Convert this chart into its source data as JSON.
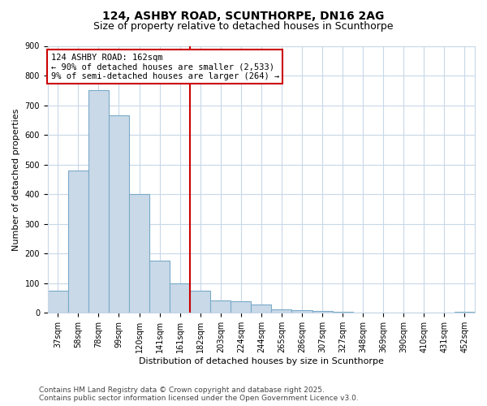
{
  "title1": "124, ASHBY ROAD, SCUNTHORPE, DN16 2AG",
  "title2": "Size of property relative to detached houses in Scunthorpe",
  "xlabel": "Distribution of detached houses by size in Scunthorpe",
  "ylabel": "Number of detached properties",
  "categories": [
    "37sqm",
    "58sqm",
    "78sqm",
    "99sqm",
    "120sqm",
    "141sqm",
    "161sqm",
    "182sqm",
    "203sqm",
    "224sqm",
    "244sqm",
    "265sqm",
    "286sqm",
    "307sqm",
    "327sqm",
    "348sqm",
    "369sqm",
    "390sqm",
    "410sqm",
    "431sqm",
    "452sqm"
  ],
  "values": [
    75,
    480,
    750,
    665,
    400,
    175,
    100,
    75,
    42,
    38,
    28,
    12,
    10,
    7,
    4,
    2,
    1,
    0,
    0,
    0,
    5
  ],
  "bar_color": "#c9d9e8",
  "bar_edgecolor": "#7aaac8",
  "bar_linewidth": 0.8,
  "marker_bar_index": 7,
  "marker_color": "#cc0000",
  "annotation_text": "124 ASHBY ROAD: 162sqm\n← 90% of detached houses are smaller (2,533)\n9% of semi-detached houses are larger (264) →",
  "annotation_box_color": "#ffffff",
  "annotation_box_edgecolor": "#cc0000",
  "ylim": [
    0,
    900
  ],
  "yticks": [
    0,
    100,
    200,
    300,
    400,
    500,
    600,
    700,
    800,
    900
  ],
  "bg_color": "#ffffff",
  "grid_color": "#c8d8e8",
  "footer1": "Contains HM Land Registry data © Crown copyright and database right 2025.",
  "footer2": "Contains public sector information licensed under the Open Government Licence v3.0.",
  "title_fontsize": 10,
  "subtitle_fontsize": 9,
  "axis_fontsize": 8,
  "tick_fontsize": 7,
  "annotation_fontsize": 7.5,
  "footer_fontsize": 6.5
}
